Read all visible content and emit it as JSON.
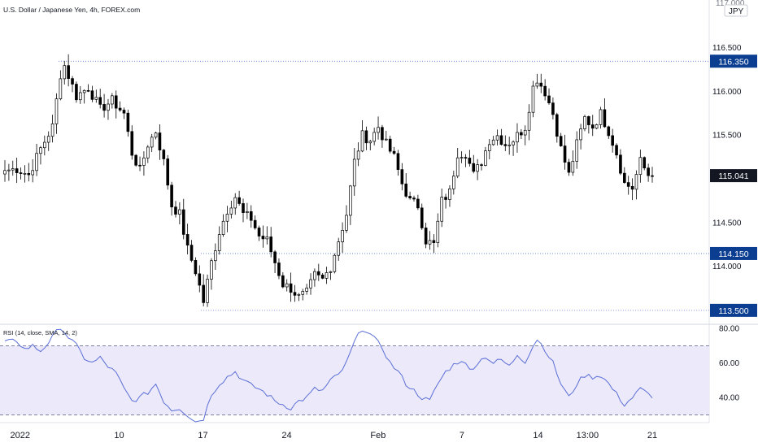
{
  "header": {
    "symbol_title": "U.S. Dollar / Japanese Yen, 4h, FOREX.com",
    "top_price_partial": "117.000",
    "currency": "JPY"
  },
  "price_axis": {
    "ticks": [
      "116.500",
      "116.000",
      "115.500",
      "114.500",
      "114.000"
    ],
    "badges": [
      "116.350",
      "115.041",
      "114.150",
      "113.500"
    ],
    "badge_colors": {
      "reference": "#0b3d91",
      "last": "#131722"
    }
  },
  "rsi_axis": {
    "label": "RSI (14, close, SMA, 14, 2)",
    "ticks": [
      "80.00",
      "60.00",
      "40.00"
    ],
    "band_upper": 70,
    "band_lower": 30,
    "line_color": "#5b6fd6"
  },
  "time_axis": {
    "labels": [
      "2022",
      "10",
      "17",
      "24",
      "Feb",
      "7",
      "14",
      "13:00",
      "21"
    ]
  },
  "chart_data": [
    {
      "type": "candlestick",
      "title": "U.S. Dollar / Japanese Yen, 4h, FOREX.com",
      "ylim": [
        113.35,
        117.05
      ],
      "candle_colors": {
        "up": "#ffffff",
        "down": "#000000",
        "wick": "#000000"
      },
      "reference_levels": [
        116.35,
        115.041,
        114.15,
        113.5
      ],
      "x_tick_positions": {
        "2022": 4,
        "10": 30,
        "17": 52,
        "24": 74,
        "Feb": 98,
        "7": 120,
        "14": 140,
        "13:00": 153,
        "21": 170
      },
      "close_anchors": [
        [
          0,
          115.1
        ],
        [
          3,
          115.12
        ],
        [
          6,
          115.05
        ],
        [
          9,
          115.35
        ],
        [
          12,
          115.6
        ],
        [
          14,
          116.2
        ],
        [
          15,
          116.3
        ],
        [
          18,
          115.95
        ],
        [
          21,
          116.05
        ],
        [
          24,
          115.8
        ],
        [
          27,
          115.9
        ],
        [
          30,
          115.75
        ],
        [
          32,
          115.3
        ],
        [
          34,
          115.1
        ],
        [
          36,
          115.4
        ],
        [
          38,
          115.55
        ],
        [
          40,
          115.2
        ],
        [
          42,
          114.7
        ],
        [
          44,
          114.6
        ],
        [
          46,
          114.2
        ],
        [
          48,
          113.95
        ],
        [
          50,
          113.6
        ],
        [
          52,
          114.05
        ],
        [
          54,
          114.4
        ],
        [
          56,
          114.65
        ],
        [
          58,
          114.8
        ],
        [
          60,
          114.6
        ],
        [
          62,
          114.55
        ],
        [
          64,
          114.35
        ],
        [
          66,
          114.3
        ],
        [
          68,
          114.05
        ],
        [
          70,
          113.8
        ],
        [
          72,
          113.75
        ],
        [
          74,
          113.65
        ],
        [
          76,
          113.7
        ],
        [
          78,
          113.9
        ],
        [
          80,
          113.85
        ],
        [
          82,
          114.0
        ],
        [
          84,
          114.3
        ],
        [
          86,
          114.6
        ],
        [
          88,
          115.2
        ],
        [
          90,
          115.5
        ],
        [
          92,
          115.45
        ],
        [
          94,
          115.6
        ],
        [
          96,
          115.4
        ],
        [
          98,
          115.25
        ],
        [
          100,
          114.95
        ],
        [
          102,
          114.75
        ],
        [
          104,
          114.7
        ],
        [
          106,
          114.3
        ],
        [
          108,
          114.25
        ],
        [
          110,
          114.75
        ],
        [
          112,
          114.85
        ],
        [
          114,
          115.3
        ],
        [
          116,
          115.3
        ],
        [
          118,
          115.05
        ],
        [
          120,
          115.2
        ],
        [
          122,
          115.45
        ],
        [
          124,
          115.5
        ],
        [
          126,
          115.4
        ],
        [
          128,
          115.45
        ],
        [
          130,
          115.55
        ],
        [
          131,
          115.6
        ],
        [
          133,
          116.05
        ],
        [
          134,
          116.15
        ],
        [
          136,
          116.0
        ],
        [
          138,
          115.75
        ],
        [
          140,
          115.35
        ],
        [
          142,
          115.05
        ],
        [
          144,
          115.4
        ],
        [
          146,
          115.7
        ],
        [
          148,
          115.6
        ],
        [
          150,
          115.75
        ],
        [
          152,
          115.55
        ],
        [
          154,
          115.3
        ],
        [
          156,
          114.95
        ],
        [
          158,
          114.9
        ],
        [
          160,
          115.2
        ],
        [
          162,
          115.05
        ],
        [
          163,
          115.04
        ]
      ]
    },
    {
      "type": "line",
      "title": "RSI (14, close, SMA, 14, 2)",
      "series": [
        {
          "values": [
            [
              0,
              72
            ],
            [
              3,
              73
            ],
            [
              5,
              68
            ],
            [
              7,
              70
            ],
            [
              9,
              67
            ],
            [
              11,
              72
            ],
            [
              13,
              78
            ],
            [
              14,
              81
            ],
            [
              16,
              75
            ],
            [
              18,
              70
            ],
            [
              20,
              63
            ],
            [
              22,
              60
            ],
            [
              24,
              63
            ],
            [
              26,
              58
            ],
            [
              28,
              54
            ],
            [
              30,
              45
            ],
            [
              32,
              38
            ],
            [
              34,
              40
            ],
            [
              36,
              43
            ],
            [
              38,
              48
            ],
            [
              40,
              38
            ],
            [
              42,
              33
            ],
            [
              44,
              34
            ],
            [
              46,
              30
            ],
            [
              48,
              26
            ],
            [
              50,
              28
            ],
            [
              52,
              42
            ],
            [
              54,
              48
            ],
            [
              56,
              52
            ],
            [
              58,
              55
            ],
            [
              60,
              50
            ],
            [
              62,
              47
            ],
            [
              64,
              45
            ],
            [
              66,
              42
            ],
            [
              68,
              38
            ],
            [
              70,
              36
            ],
            [
              72,
              34
            ],
            [
              74,
              38
            ],
            [
              76,
              40
            ],
            [
              78,
              45
            ],
            [
              80,
              44
            ],
            [
              82,
              50
            ],
            [
              84,
              53
            ],
            [
              86,
              60
            ],
            [
              88,
              72
            ],
            [
              90,
              80
            ],
            [
              91,
              79
            ],
            [
              93,
              74
            ],
            [
              95,
              69
            ],
            [
              97,
              60
            ],
            [
              99,
              55
            ],
            [
              101,
              48
            ],
            [
              103,
              44
            ],
            [
              105,
              40
            ],
            [
              107,
              38
            ],
            [
              109,
              48
            ],
            [
              111,
              55
            ],
            [
              113,
              59
            ],
            [
              115,
              62
            ],
            [
              117,
              56
            ],
            [
              119,
              60
            ],
            [
              121,
              64
            ],
            [
              123,
              60
            ],
            [
              125,
              62
            ],
            [
              127,
              58
            ],
            [
              129,
              65
            ],
            [
              131,
              61
            ],
            [
              133,
              70
            ],
            [
              134,
              74
            ],
            [
              136,
              68
            ],
            [
              138,
              60
            ],
            [
              140,
              48
            ],
            [
              142,
              40
            ],
            [
              144,
              48
            ],
            [
              146,
              53
            ],
            [
              148,
              52
            ],
            [
              150,
              53
            ],
            [
              152,
              48
            ],
            [
              154,
              42
            ],
            [
              156,
              36
            ],
            [
              158,
              40
            ],
            [
              160,
              45
            ],
            [
              162,
              42
            ],
            [
              163,
              41
            ]
          ]
        }
      ],
      "ylim": [
        26,
        82
      ]
    }
  ]
}
